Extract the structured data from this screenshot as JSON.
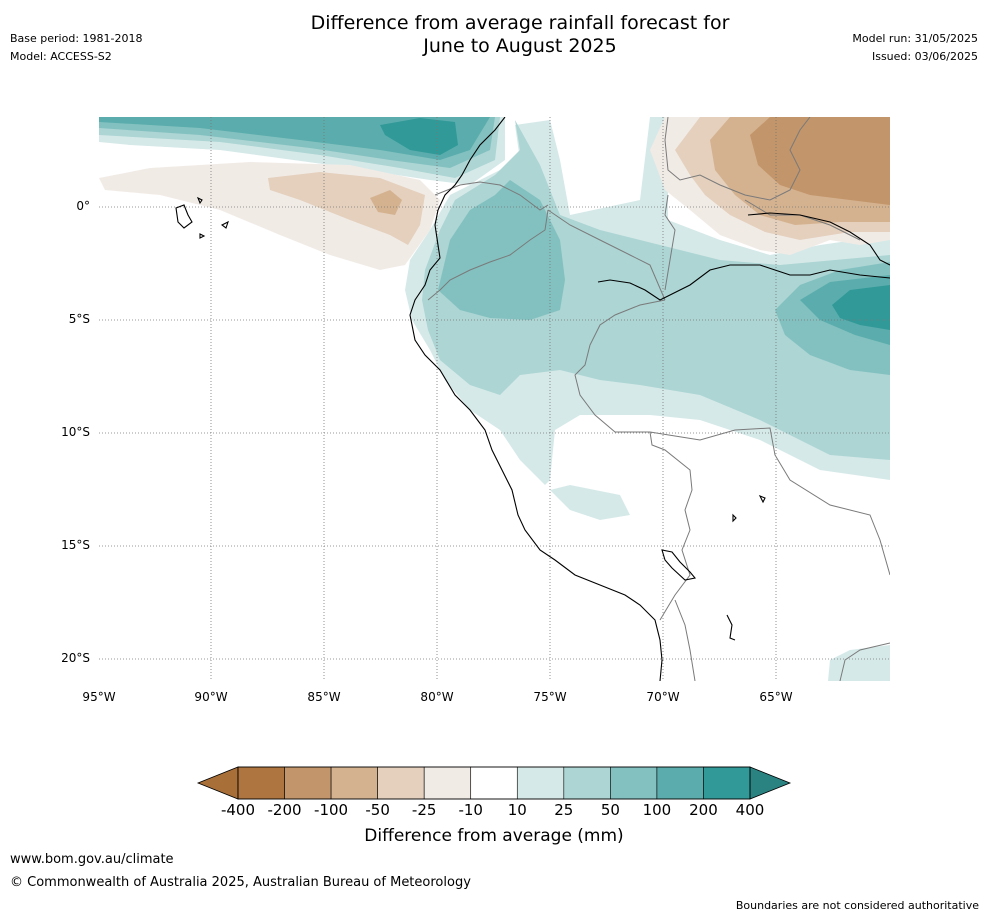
{
  "header": {
    "title_line1": "Difference from average rainfall forecast for",
    "title_line2": "June to August 2025",
    "base_period": "Base period: 1981-2018",
    "model": "Model: ACCESS-S2",
    "model_run": "Model run: 31/05/2025",
    "issued": "Issued: 03/06/2025"
  },
  "map": {
    "lat_labels": [
      "0°",
      "5°S",
      "10°S",
      "15°S",
      "20°S"
    ],
    "lon_labels": [
      "95°W",
      "90°W",
      "85°W",
      "80°W",
      "75°W",
      "70°W",
      "65°W"
    ],
    "colors": {
      "ocean": "#ffffff",
      "coast": "#000000",
      "border": "#7a7a7a",
      "grid": "#777777"
    }
  },
  "colorbar": {
    "labels": [
      "-400",
      "-200",
      "-100",
      "-50",
      "-25",
      "-10",
      "10",
      "25",
      "50",
      "100",
      "200",
      "400"
    ],
    "colors": [
      "#a86f39",
      "#af7540",
      "#c3956a",
      "#d4b290",
      "#e4d0bd",
      "#f1ebe6",
      "#ffffff",
      "#d5e9e8",
      "#acd5d4",
      "#83c1c0",
      "#5aadac",
      "#319998",
      "#2a8281"
    ],
    "title": "Difference from average (mm)"
  },
  "footer": {
    "website": "www.bom.gov.au/climate",
    "copyright": "© Commonwealth of Australia 2025, Australian Bureau of Meteorology",
    "disclaimer": "Boundaries are not considered authoritative"
  }
}
